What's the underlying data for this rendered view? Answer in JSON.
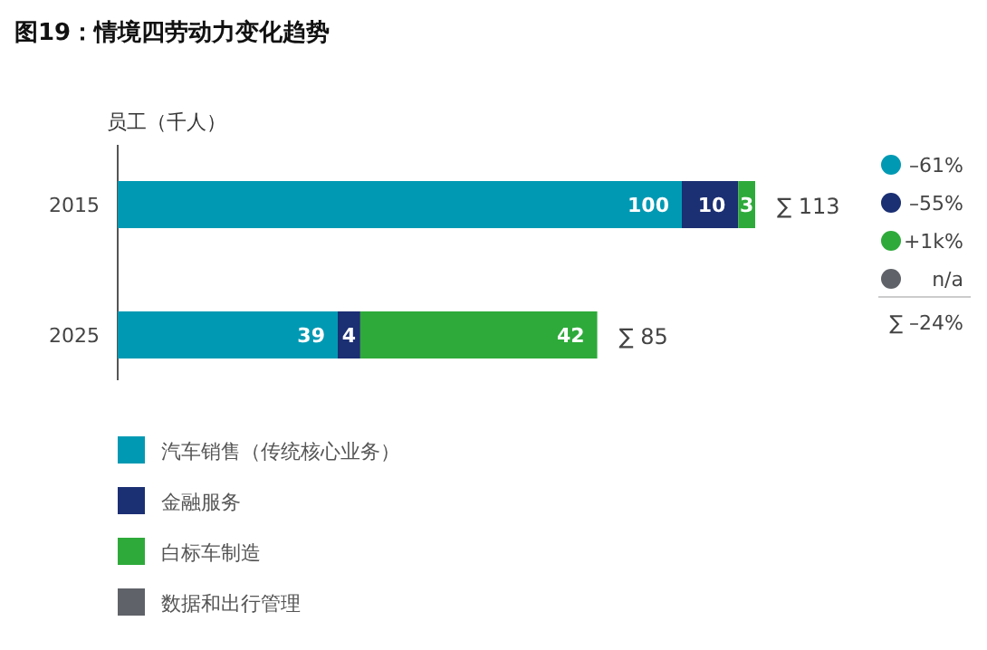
{
  "chart_data": {
    "type": "bar",
    "orientation": "horizontal",
    "stacked": true,
    "title": "图19：情境四劳动力变化趋势",
    "ylabel": "员工（千人）",
    "categories": [
      "2015",
      "2025"
    ],
    "series": [
      {
        "name": "汽车销售（传统核心业务）",
        "color": "#0099b3",
        "values": [
          100,
          39
        ]
      },
      {
        "name": "金融服务",
        "color": "#1b2f73",
        "values": [
          10,
          4
        ]
      },
      {
        "name": "白标车制造",
        "color": "#2eaa3a",
        "values": [
          3,
          42
        ]
      },
      {
        "name": "数据和出行管理",
        "color": "#5f6268",
        "values": [
          null,
          null
        ]
      }
    ],
    "data_labels": true,
    "totals": [
      "∑ 113",
      "∑ 85"
    ],
    "legend": "bottom",
    "annotations": [
      "–61%",
      "–55%",
      "+1k%",
      "n/a",
      "∑ –24%"
    ]
  }
}
